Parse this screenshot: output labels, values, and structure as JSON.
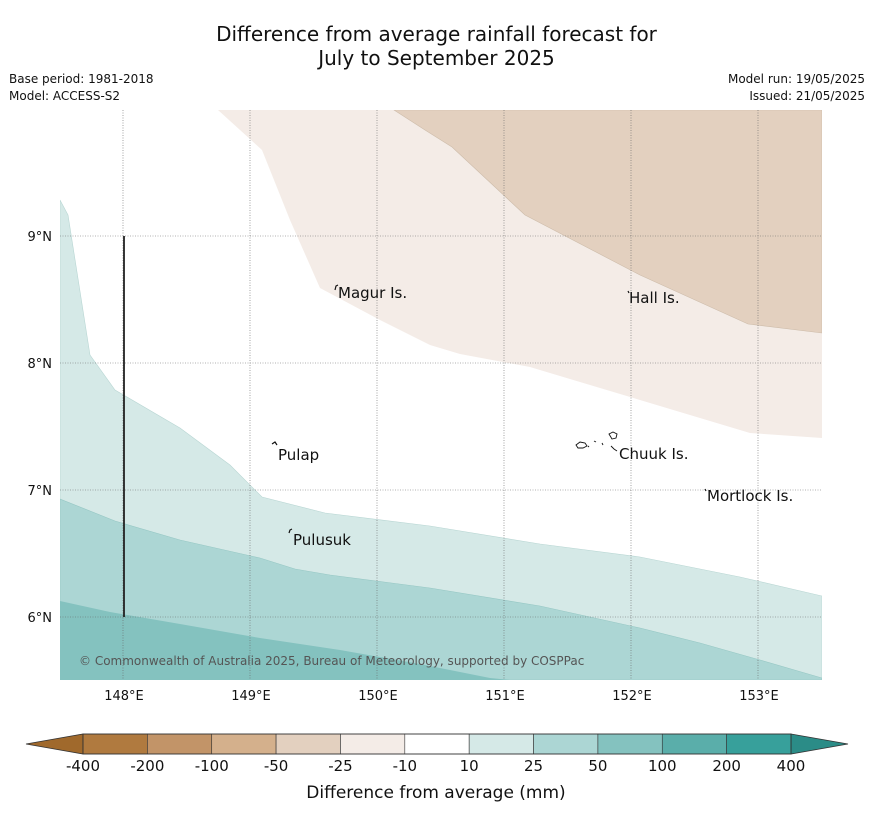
{
  "title": {
    "line1": "Difference from average rainfall forecast for",
    "line2": "July to September 2025"
  },
  "meta": {
    "base_period": "Base period: 1981-2018",
    "model": "Model: ACCESS-S2",
    "model_run": "Model run: 19/05/2025",
    "issued": "Issued: 21/05/2025"
  },
  "map": {
    "lat_labels": [
      "9°N",
      "8°N",
      "7°N",
      "6°N"
    ],
    "lon_labels": [
      "148°E",
      "149°E",
      "150°E",
      "151°E",
      "152°E",
      "153°E"
    ],
    "places": {
      "magur": "Magur Is.",
      "hall": "Hall Is.",
      "pulap": "Pulap",
      "chuuk": "Chuuk Is.",
      "mortlock": "Mortlock Is.",
      "pulusuk": "Pulusuk"
    },
    "copyright": "© Commonwealth of Australia 2025, Bureau of Meteorology, supported by COSPPac"
  },
  "legend": {
    "tick_labels": [
      "-400",
      "-200",
      "-100",
      "-50",
      "-25",
      "-10",
      "10",
      "25",
      "50",
      "100",
      "200",
      "400"
    ],
    "colors": {
      "extend_low": "#a0692c",
      "extend_high": "#2b8c87",
      "bins": [
        "#b07a3f",
        "#c29468",
        "#d4b08c",
        "#e3d0bf",
        "#f4ece7",
        "#ffffff",
        "#d5e9e7",
        "#acd6d4",
        "#84c2bf",
        "#5aaeaa",
        "#37a09b"
      ]
    },
    "axis_label": "Difference from average (mm)"
  }
}
